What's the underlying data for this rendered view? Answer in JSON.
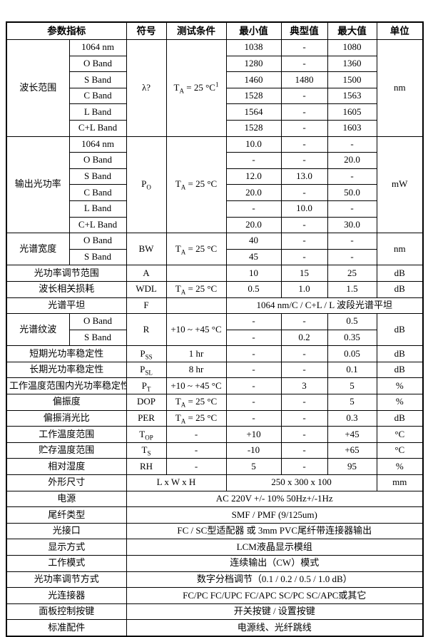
{
  "header": {
    "param": "参数指标",
    "symbol": "符号",
    "condition": "测试条件",
    "min": "最小值",
    "typ": "典型值",
    "max": "最大值",
    "unit": "单位"
  },
  "wavelength_range": {
    "label": "波长范围",
    "symbol": "λ?",
    "condition": "T~A~ = 25 °C^1^",
    "unit": "nm",
    "rows": [
      {
        "band": "1064 nm",
        "min": "1038",
        "typ": "-",
        "max": "1080"
      },
      {
        "band": "O Band",
        "min": "1280",
        "typ": "-",
        "max": "1360"
      },
      {
        "band": "S Band",
        "min": "1460",
        "typ": "1480",
        "max": "1500"
      },
      {
        "band": "C Band",
        "min": "1528",
        "typ": "-",
        "max": "1563"
      },
      {
        "band": "L Band",
        "min": "1564",
        "typ": "-",
        "max": "1605"
      },
      {
        "band": "C+L Band",
        "min": "1528",
        "typ": "-",
        "max": "1603"
      }
    ]
  },
  "output_power": {
    "label": "输出光功率",
    "symbol": "P~O~",
    "condition": "T~A~ = 25 °C",
    "unit": "mW",
    "rows": [
      {
        "band": "1064 nm",
        "min": "10.0",
        "typ": "-",
        "max": "-"
      },
      {
        "band": "O Band",
        "min": "-",
        "typ": "-",
        "max": "20.0"
      },
      {
        "band": "S Band",
        "min": "12.0",
        "typ": "13.0",
        "max": "-"
      },
      {
        "band": "C Band",
        "min": "20.0",
        "typ": "-",
        "max": "50.0"
      },
      {
        "band": "L Band",
        "min": "-",
        "typ": "10.0",
        "max": "-"
      },
      {
        "band": "C+L Band",
        "min": "20.0",
        "typ": "-",
        "max": "30.0"
      }
    ]
  },
  "spectral_width": {
    "label": "光谱宽度",
    "symbol": "BW",
    "condition": "T~A~ = 25 °C",
    "unit": "nm",
    "rows": [
      {
        "band": "O Band",
        "min": "40",
        "typ": "-",
        "max": "-"
      },
      {
        "band": "S Band",
        "min": "45",
        "typ": "-",
        "max": "-"
      }
    ]
  },
  "adjust_range": {
    "label": "光功率调节范围",
    "symbol": "A",
    "condition": "",
    "min": "10",
    "typ": "15",
    "max": "25",
    "unit": "dB"
  },
  "wdl": {
    "label": "波长相关损耗",
    "symbol": "WDL",
    "condition": "T~A~ = 25 °C",
    "min": "0.5",
    "typ": "1.0",
    "max": "1.5",
    "unit": "dB"
  },
  "flatness": {
    "label": "光谱平坦",
    "symbol": "F",
    "condition": "",
    "span_text": "1064 nm/C / C+L / L  波段光谱平坦"
  },
  "ripple": {
    "label": "光谱纹波",
    "symbol": "R",
    "condition": "+10 ~ +45 °C",
    "unit": "dB",
    "rows": [
      {
        "band": "O Band",
        "min": "-",
        "typ": "-",
        "max": "0.5"
      },
      {
        "band": "S Band",
        "min": "-",
        "typ": "0.2",
        "max": "0.35"
      }
    ]
  },
  "simple_rows": [
    {
      "label": "短期光功率稳定性",
      "symbol": "P~SS~",
      "condition": "1 hr",
      "min": "-",
      "typ": "-",
      "max": "0.05",
      "unit": "dB"
    },
    {
      "label": "长期光功率稳定性",
      "symbol": "P~SL~",
      "condition": "8 hr",
      "min": "-",
      "typ": "-",
      "max": "0.1",
      "unit": "dB"
    },
    {
      "label": "工作温度范围内光功率稳定性",
      "symbol": "P~T~",
      "condition": "+10 ~ +45 °C",
      "min": "-",
      "typ": "3",
      "max": "5",
      "unit": "%"
    },
    {
      "label": "偏振度",
      "symbol": "DOP",
      "condition": "T~A~ = 25 °C",
      "min": "-",
      "typ": "-",
      "max": "5",
      "unit": "%"
    },
    {
      "label": "偏振消光比",
      "symbol": "PER",
      "condition": "T~A~ = 25 °C",
      "min": "-",
      "typ": "-",
      "max": "0.3",
      "unit": "dB"
    },
    {
      "label": "工作温度范围",
      "symbol": "T~OP~",
      "condition": "-",
      "min": "+10",
      "typ": "-",
      "max": "+45",
      "unit": "°C"
    },
    {
      "label": "贮存温度范围",
      "symbol": "T~S~",
      "condition": "-",
      "min": "-10",
      "typ": "-",
      "max": "+65",
      "unit": "°C"
    },
    {
      "label": "相对湿度",
      "symbol": "RH",
      "condition": "-",
      "min": "5",
      "typ": "-",
      "max": "95",
      "unit": "%"
    }
  ],
  "dimensions": {
    "label": "外形尺寸",
    "lwh": "L x W x H",
    "value": "250 x 300 x 100",
    "unit": "mm"
  },
  "full_rows": [
    {
      "label": "电源",
      "value": "AC 220V +/- 10% 50Hz+/-1Hz"
    },
    {
      "label": "尾纤类型",
      "value": "SMF / PMF (9/125um)"
    },
    {
      "label": "光接口",
      "value": "FC / SC型适配器 或 3mm PVC尾纤带连接器输出"
    },
    {
      "label": "显示方式",
      "value": "LCM液晶显示模组"
    },
    {
      "label": "工作模式",
      "value": "连续输出（CW）模式"
    },
    {
      "label": "光功率调节方式",
      "value": "数字分档调节（0.1 / 0.2 / 0.5 / 1.0 dB）"
    },
    {
      "label": "光连接器",
      "value": "FC/PC FC/UPC FC/APC SC/PC SC/APC或其它"
    },
    {
      "label": "面板控制按键",
      "value": "开关按键 / 设置按键"
    },
    {
      "label": "标准配件",
      "value": "电源线、光纤跳线"
    }
  ]
}
